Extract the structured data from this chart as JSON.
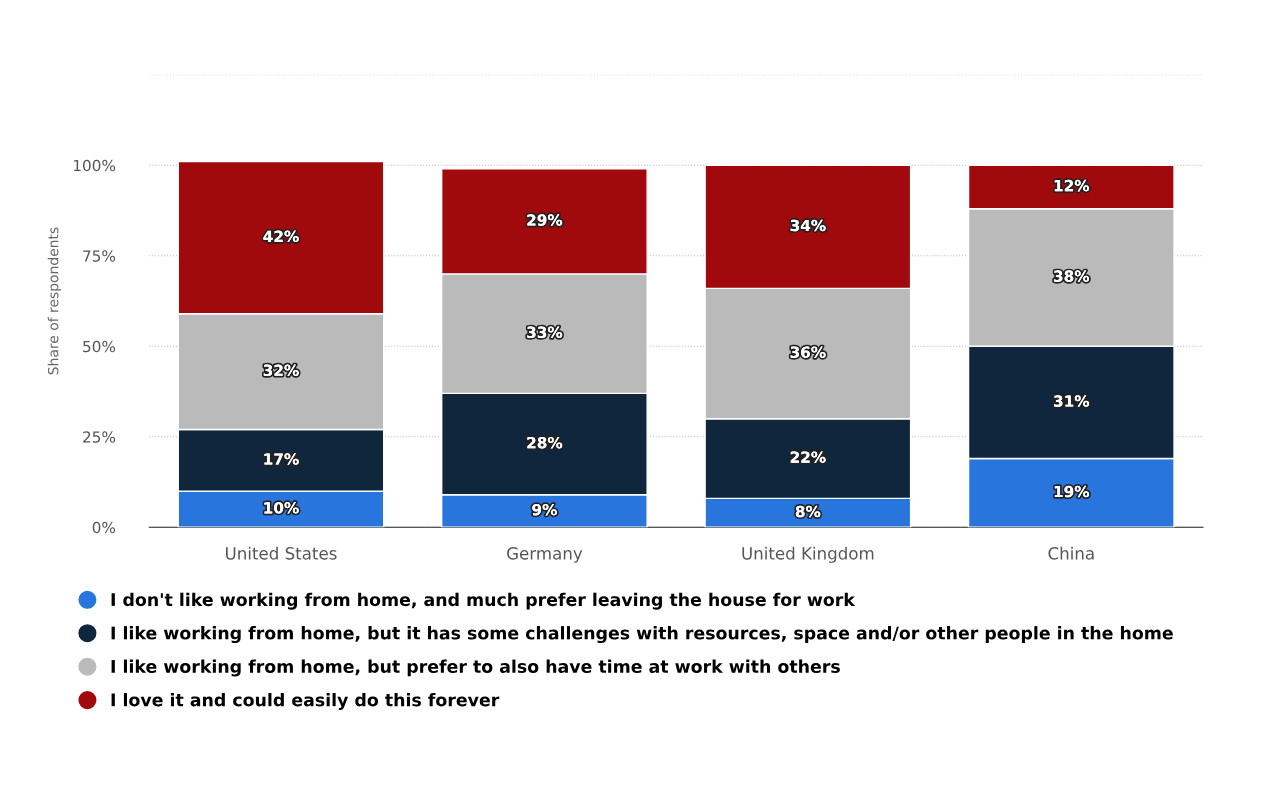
{
  "chart_data": {
    "type": "bar",
    "stacked": true,
    "ylabel": "Share of respondents",
    "categories": [
      "United States",
      "Germany",
      "United Kingdom",
      "China"
    ],
    "series": [
      {
        "name": "I don't like working from home, and much prefer leaving the house for work",
        "color": "#2876dd",
        "values": [
          10,
          9,
          8,
          19
        ],
        "value_labels": [
          "10%",
          "9%",
          "8%",
          "19%"
        ]
      },
      {
        "name": "I like working from home, but it has some challenges with resources, space and/or other people in the home",
        "color": "#10263d",
        "values": [
          17,
          28,
          22,
          31
        ],
        "value_labels": [
          "17%",
          "28%",
          "22%",
          "31%"
        ]
      },
      {
        "name": "I like working from home, but prefer to also have time at work with others",
        "color": "#bababa",
        "values": [
          32,
          33,
          36,
          38
        ],
        "value_labels": [
          "32%",
          "33%",
          "36%",
          "38%"
        ]
      },
      {
        "name": "I love it and could easily do this forever",
        "color": "#a10a0c",
        "values": [
          42,
          29,
          34,
          12
        ],
        "value_labels": [
          "42%",
          "29%",
          "34%",
          "12%"
        ]
      }
    ],
    "ylim": [
      0,
      125
    ],
    "yticks": [
      {
        "value": 0,
        "label": "0%"
      },
      {
        "value": 25,
        "label": "25%"
      },
      {
        "value": 50,
        "label": "50%"
      },
      {
        "value": 75,
        "label": "75%"
      },
      {
        "value": 100,
        "label": "100%"
      },
      {
        "value": 125,
        "label": null
      }
    ],
    "grid": "y",
    "legend": "bottom"
  }
}
